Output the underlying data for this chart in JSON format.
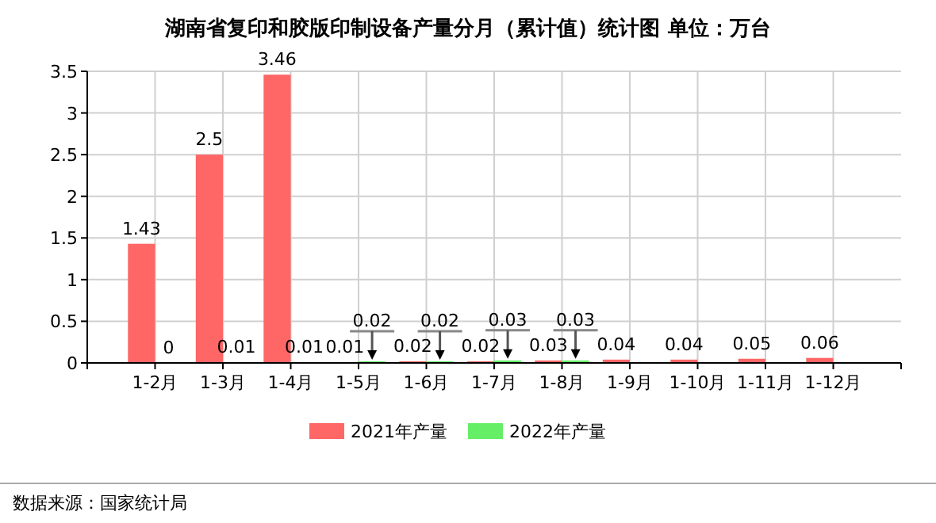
{
  "chart_data": {
    "type": "bar",
    "title": "湖南省复印和胶版印制设备产量分月（累计值）统计图 单位：万台",
    "categories": [
      "1-2月",
      "1-3月",
      "1-4月",
      "1-5月",
      "1-6月",
      "1-7月",
      "1-8月",
      "1-9月",
      "1-10月",
      "1-11月",
      "1-12月"
    ],
    "series": [
      {
        "name": "2021年产量",
        "color": "#ff6666",
        "values": [
          1.43,
          2.5,
          3.46,
          0.01,
          0.02,
          0.02,
          0.03,
          0.04,
          0.04,
          0.05,
          0.06
        ]
      },
      {
        "name": "2022年产量",
        "color": "#66ee66",
        "values": [
          0,
          0.01,
          0.01,
          0.02,
          0.02,
          0.03,
          0.03,
          null,
          null,
          null,
          null
        ]
      }
    ],
    "ylim": [
      0,
      3.5
    ],
    "yticks": [
      0,
      0.5,
      1,
      1.5,
      2,
      2.5,
      3,
      3.5
    ],
    "grid": true,
    "legend": "bottom",
    "data_labels": true,
    "annotations": [
      "数据来源：国家统计局"
    ]
  }
}
